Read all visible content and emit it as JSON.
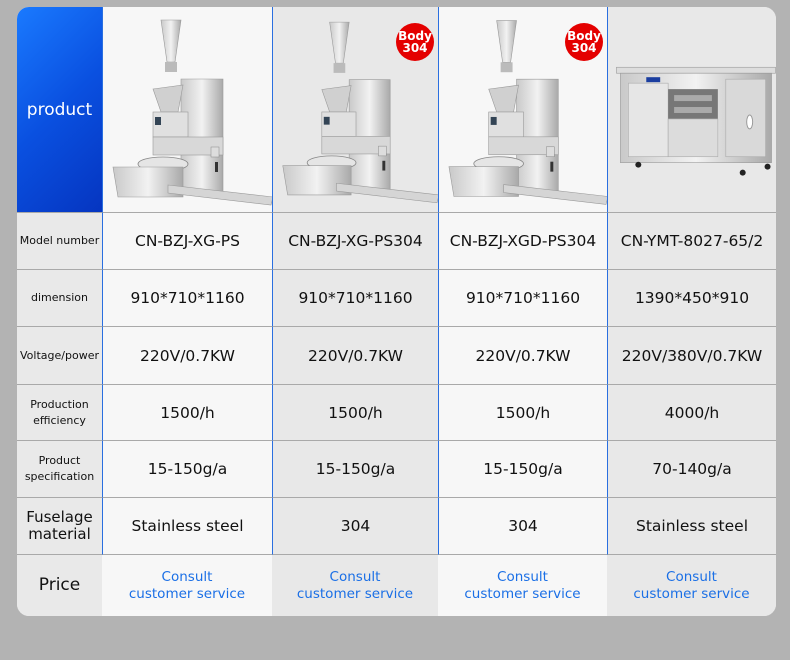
{
  "header_label": "product",
  "products": [
    {
      "image": "dumpling-machine-image",
      "badge": null
    },
    {
      "image": "dumpling-machine-image",
      "badge": {
        "line1": "Body",
        "line2": "304",
        "color": "#e40000"
      }
    },
    {
      "image": "dumpling-machine-image",
      "badge": {
        "line1": "Body",
        "line2": "304",
        "color": "#e40000"
      }
    },
    {
      "image": "proofing-cabinet-image",
      "badge": null
    }
  ],
  "rows": [
    {
      "label": "Model number",
      "values": [
        "CN-BZJ-XG-PS",
        "CN-BZJ-XG-PS304",
        "CN-BZJ-XGD-PS304",
        "CN-YMT-8027-65/2"
      ]
    },
    {
      "label": "dimension",
      "values": [
        "910*710*1160",
        "910*710*1160",
        "910*710*1160",
        "1390*450*910"
      ]
    },
    {
      "label": "Voltage/power",
      "values": [
        "220V/0.7KW",
        "220V/0.7KW",
        "220V/0.7KW",
        "220V/380V/0.7KW"
      ]
    },
    {
      "label": "Production efficiency",
      "values": [
        "1500/h",
        "1500/h",
        "1500/h",
        "4000/h"
      ]
    },
    {
      "label": "Product specification",
      "values": [
        "15-150g/a",
        "15-150g/a",
        "15-150g/a",
        "70-140g/a"
      ]
    },
    {
      "label": "Fuselage material",
      "values": [
        "Stainless steel",
        "304",
        "304",
        "Stainless steel"
      ]
    }
  ],
  "price": {
    "label": "Price",
    "line1": "Consult",
    "line2": "customer service",
    "link_color": "#1a6fe6"
  },
  "colors": {
    "accent": "#0a50e0",
    "background": "#b3b3b3"
  }
}
